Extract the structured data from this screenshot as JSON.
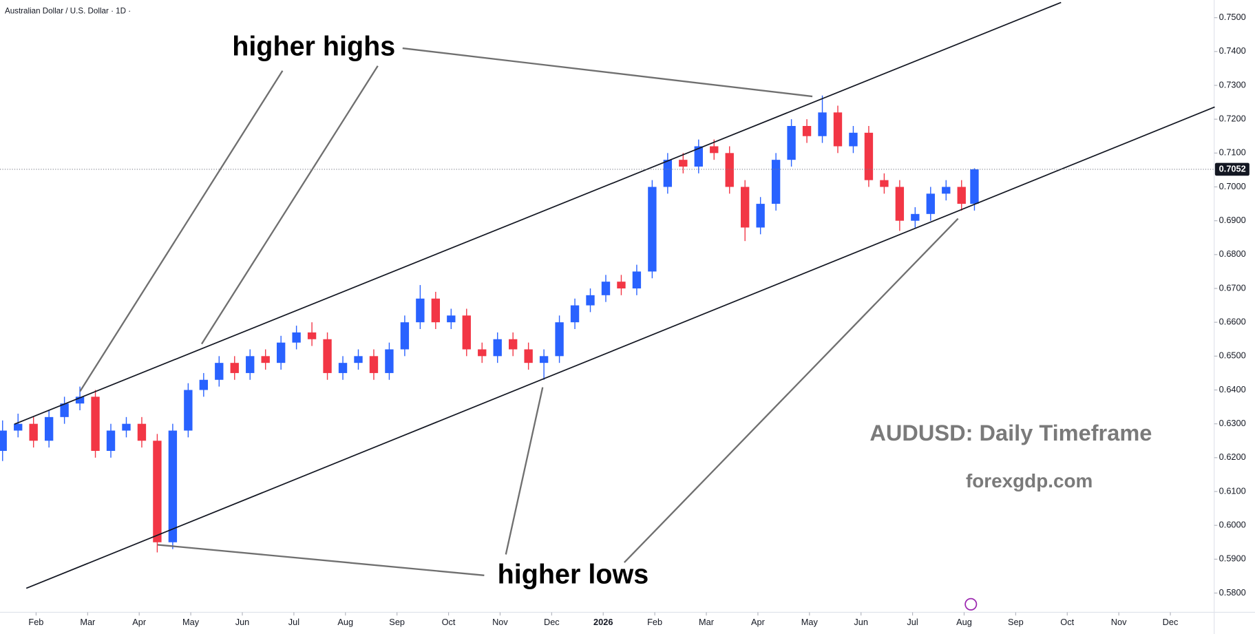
{
  "chart_data": {
    "type": "candlestick",
    "header": "Australian Dollar / U.S. Dollar · 1D ·",
    "annotations": {
      "highs": "higher highs",
      "lows": "higher lows",
      "title": "AUDUSD: Daily Timeframe",
      "site": "forexgdp.com"
    },
    "colors": {
      "up": "#2962ff",
      "down": "#f23645"
    },
    "x": [
      0.35,
      0.65,
      0.95,
      1.25,
      1.55,
      1.85,
      2.15,
      2.45,
      2.75,
      3.05,
      3.35,
      3.65,
      3.95,
      4.25,
      4.55,
      4.85,
      5.15,
      5.45,
      5.75,
      6.05,
      6.35,
      6.65,
      6.95,
      7.25,
      7.55,
      7.85,
      8.15,
      8.45,
      8.75,
      9.05,
      9.35,
      9.65,
      9.95,
      10.25,
      10.55,
      10.85,
      11.15,
      11.45,
      11.75,
      12.05,
      12.35,
      12.65,
      12.95,
      13.25,
      13.55,
      13.85,
      14.15,
      14.45,
      14.75,
      15.05,
      15.35,
      15.65,
      15.95,
      16.25,
      16.55,
      16.85,
      17.15,
      17.45,
      17.75,
      18.05,
      18.35,
      18.65,
      18.95,
      19.2
    ],
    "open": [
      0.622,
      0.628,
      0.63,
      0.625,
      0.632,
      0.636,
      0.638,
      0.622,
      0.628,
      0.63,
      0.625,
      0.595,
      0.628,
      0.64,
      0.643,
      0.648,
      0.645,
      0.65,
      0.648,
      0.654,
      0.657,
      0.655,
      0.645,
      0.648,
      0.65,
      0.645,
      0.652,
      0.66,
      0.667,
      0.66,
      0.662,
      0.652,
      0.65,
      0.655,
      0.652,
      0.648,
      0.65,
      0.66,
      0.665,
      0.668,
      0.672,
      0.67,
      0.675,
      0.7,
      0.708,
      0.706,
      0.712,
      0.71,
      0.7,
      0.688,
      0.695,
      0.708,
      0.718,
      0.715,
      0.722,
      0.712,
      0.716,
      0.702,
      0.7,
      0.69,
      0.692,
      0.698,
      0.7,
      0.695
    ],
    "high": [
      0.631,
      0.633,
      0.632,
      0.634,
      0.638,
      0.641,
      0.64,
      0.63,
      0.632,
      0.632,
      0.627,
      0.63,
      0.642,
      0.645,
      0.65,
      0.65,
      0.652,
      0.652,
      0.656,
      0.659,
      0.66,
      0.657,
      0.65,
      0.652,
      0.652,
      0.654,
      0.662,
      0.671,
      0.669,
      0.664,
      0.664,
      0.654,
      0.657,
      0.657,
      0.654,
      0.652,
      0.662,
      0.667,
      0.67,
      0.674,
      0.674,
      0.677,
      0.702,
      0.71,
      0.71,
      0.714,
      0.714,
      0.712,
      0.702,
      0.697,
      0.71,
      0.72,
      0.72,
      0.727,
      0.724,
      0.718,
      0.718,
      0.704,
      0.702,
      0.694,
      0.7,
      0.702,
      0.702,
      0.7055
    ],
    "low": [
      0.619,
      0.626,
      0.623,
      0.623,
      0.63,
      0.634,
      0.62,
      0.62,
      0.626,
      0.623,
      0.592,
      0.593,
      0.626,
      0.638,
      0.641,
      0.643,
      0.643,
      0.646,
      0.646,
      0.652,
      0.653,
      0.643,
      0.643,
      0.646,
      0.643,
      0.643,
      0.65,
      0.658,
      0.658,
      0.658,
      0.65,
      0.648,
      0.648,
      0.65,
      0.646,
      0.643,
      0.648,
      0.658,
      0.663,
      0.666,
      0.668,
      0.668,
      0.673,
      0.698,
      0.704,
      0.704,
      0.708,
      0.698,
      0.684,
      0.686,
      0.693,
      0.706,
      0.713,
      0.713,
      0.71,
      0.71,
      0.7,
      0.698,
      0.687,
      0.688,
      0.69,
      0.696,
      0.693,
      0.693
    ],
    "close": [
      0.628,
      0.63,
      0.625,
      0.632,
      0.636,
      0.638,
      0.622,
      0.628,
      0.63,
      0.625,
      0.595,
      0.628,
      0.64,
      0.643,
      0.648,
      0.645,
      0.65,
      0.648,
      0.654,
      0.657,
      0.655,
      0.645,
      0.648,
      0.65,
      0.645,
      0.652,
      0.66,
      0.667,
      0.66,
      0.662,
      0.652,
      0.65,
      0.655,
      0.652,
      0.648,
      0.65,
      0.66,
      0.665,
      0.668,
      0.672,
      0.67,
      0.675,
      0.7,
      0.708,
      0.706,
      0.712,
      0.71,
      0.7,
      0.688,
      0.695,
      0.708,
      0.718,
      0.715,
      0.722,
      0.712,
      0.716,
      0.702,
      0.7,
      0.69,
      0.692,
      0.698,
      0.7,
      0.695,
      0.7052
    ],
    "last_price": 0.7052,
    "trendlines": [
      {
        "x": [
          0.58,
          20.88
        ],
        "y": [
          0.6299,
          0.7545
        ]
      },
      {
        "x": [
          0.81,
          23.86
        ],
        "y": [
          0.5814,
          0.7236
        ]
      }
    ],
    "xlim": [
      0.3,
      23.85
    ],
    "ylim": [
      0.57431,
      0.75522
    ],
    "xticks": [
      {
        "value": 1,
        "label": "Feb"
      },
      {
        "value": 2,
        "label": "Mar"
      },
      {
        "value": 3,
        "label": "Apr"
      },
      {
        "value": 4,
        "label": "May"
      },
      {
        "value": 5,
        "label": "Jun"
      },
      {
        "value": 6,
        "label": "Jul"
      },
      {
        "value": 7,
        "label": "Aug"
      },
      {
        "value": 8,
        "label": "Sep"
      },
      {
        "value": 9,
        "label": "Oct"
      },
      {
        "value": 10,
        "label": "Nov"
      },
      {
        "value": 11,
        "label": "Dec"
      },
      {
        "value": 12,
        "label": "2026"
      },
      {
        "value": 13,
        "label": "Feb"
      },
      {
        "value": 14,
        "label": "Mar"
      },
      {
        "value": 15,
        "label": "Apr"
      },
      {
        "value": 16,
        "label": "May"
      },
      {
        "value": 17,
        "label": "Jun"
      },
      {
        "value": 18,
        "label": "Jul"
      },
      {
        "value": 19,
        "label": "Aug"
      },
      {
        "value": 20,
        "label": "Sep"
      },
      {
        "value": 21,
        "label": "Oct"
      },
      {
        "value": 22,
        "label": "Nov"
      },
      {
        "value": 23,
        "label": "Dec"
      }
    ],
    "yticks": [
      {
        "value": 0.58,
        "label": "0.5800"
      },
      {
        "value": 0.59,
        "label": "0.5900"
      },
      {
        "value": 0.6,
        "label": "0.6000"
      },
      {
        "value": 0.61,
        "label": "0.6100"
      },
      {
        "value": 0.62,
        "label": "0.6200"
      },
      {
        "value": 0.63,
        "label": "0.6300"
      },
      {
        "value": 0.64,
        "label": "0.6400"
      },
      {
        "value": 0.65,
        "label": "0.6500"
      },
      {
        "value": 0.66,
        "label": "0.6600"
      },
      {
        "value": 0.67,
        "label": "0.6700"
      },
      {
        "value": 0.68,
        "label": "0.6800"
      },
      {
        "value": 0.69,
        "label": "0.6900"
      },
      {
        "value": 0.7,
        "label": "0.7000"
      },
      {
        "value": 0.71,
        "label": "0.7100"
      },
      {
        "value": 0.72,
        "label": "0.7200"
      },
      {
        "value": 0.73,
        "label": "0.7300"
      },
      {
        "value": 0.74,
        "label": "0.7400"
      },
      {
        "value": 0.75,
        "label": "0.7500"
      }
    ]
  }
}
